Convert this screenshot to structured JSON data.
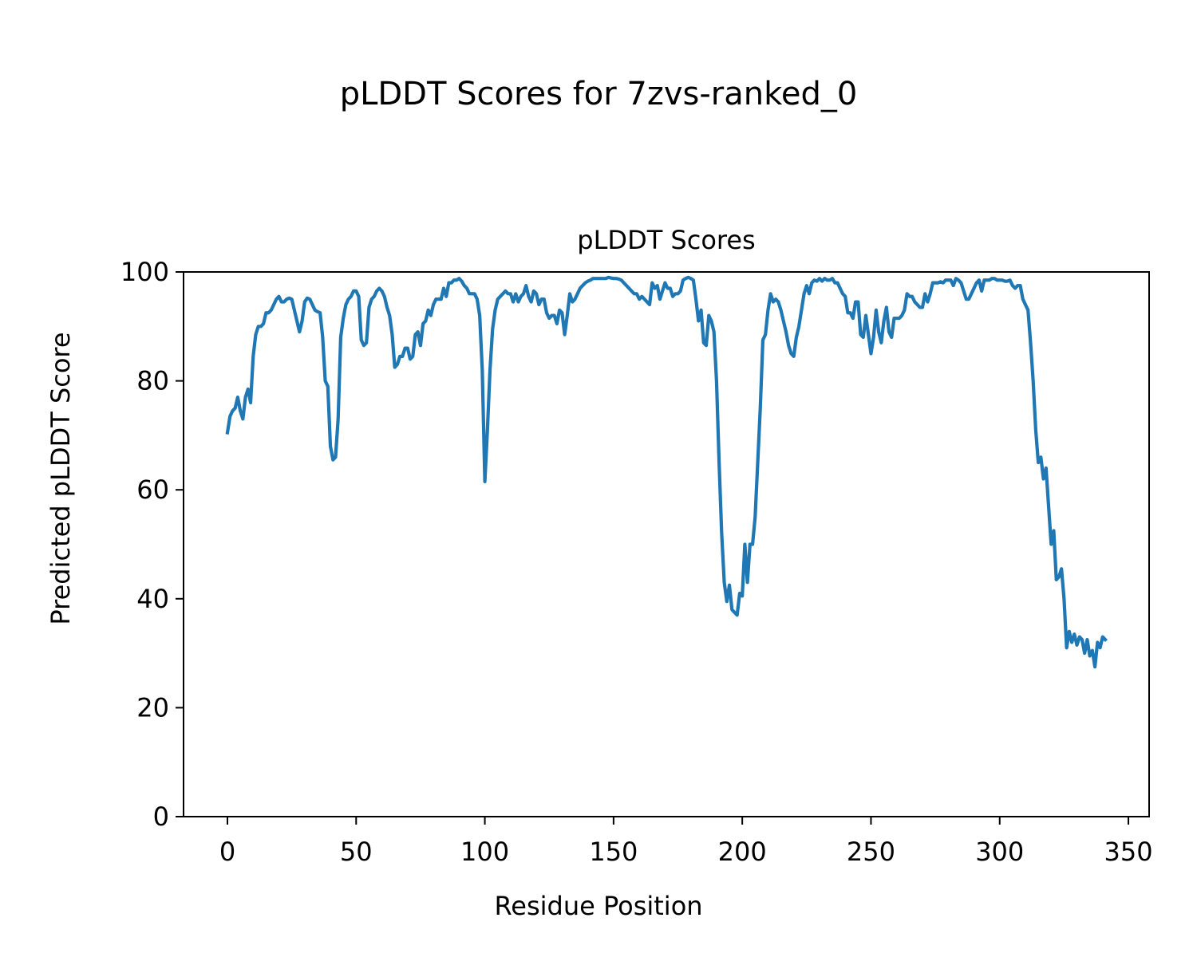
{
  "chart_data": {
    "type": "line",
    "suptitle": "pLDDT Scores for 7zvs-ranked_0",
    "title": "pLDDT Scores",
    "xlabel": "Residue Position",
    "ylabel": "Predicted pLDDT Score",
    "color": "#1f77b4",
    "xlim": [
      -17.05,
      358.05
    ],
    "ylim": [
      0,
      100
    ],
    "xticks": [
      0,
      50,
      100,
      150,
      200,
      250,
      300,
      350
    ],
    "yticks": [
      0,
      20,
      40,
      60,
      80,
      100
    ],
    "x": [
      0,
      1,
      2,
      3,
      4,
      5,
      6,
      7,
      8,
      9,
      10,
      11,
      12,
      13,
      14,
      15,
      16,
      17,
      18,
      19,
      20,
      21,
      22,
      23,
      24,
      25,
      26,
      27,
      28,
      29,
      30,
      31,
      32,
      33,
      34,
      35,
      36,
      37,
      38,
      39,
      40,
      41,
      42,
      43,
      44,
      45,
      46,
      47,
      48,
      49,
      50,
      51,
      52,
      53,
      54,
      55,
      56,
      57,
      58,
      59,
      60,
      61,
      62,
      63,
      64,
      65,
      66,
      67,
      68,
      69,
      70,
      71,
      72,
      73,
      74,
      75,
      76,
      77,
      78,
      79,
      80,
      81,
      82,
      83,
      84,
      85,
      86,
      87,
      88,
      89,
      90,
      91,
      92,
      93,
      94,
      95,
      96,
      97,
      98,
      99,
      100,
      101,
      102,
      103,
      104,
      105,
      106,
      107,
      108,
      109,
      110,
      111,
      112,
      113,
      114,
      115,
      116,
      117,
      118,
      119,
      120,
      121,
      122,
      123,
      124,
      125,
      126,
      127,
      128,
      129,
      130,
      131,
      132,
      133,
      134,
      135,
      136,
      137,
      138,
      139,
      140,
      141,
      142,
      143,
      144,
      145,
      146,
      147,
      148,
      149,
      150,
      151,
      152,
      153,
      154,
      155,
      156,
      157,
      158,
      159,
      160,
      161,
      162,
      163,
      164,
      165,
      166,
      167,
      168,
      169,
      170,
      171,
      172,
      173,
      174,
      175,
      176,
      177,
      178,
      179,
      180,
      181,
      182,
      183,
      184,
      185,
      186,
      187,
      188,
      189,
      190,
      191,
      192,
      193,
      194,
      195,
      196,
      197,
      198,
      199,
      200,
      201,
      202,
      203,
      204,
      205,
      206,
      207,
      208,
      209,
      210,
      211,
      212,
      213,
      214,
      215,
      216,
      217,
      218,
      219,
      220,
      221,
      222,
      223,
      224,
      225,
      226,
      227,
      228,
      229,
      230,
      231,
      232,
      233,
      234,
      235,
      236,
      237,
      238,
      239,
      240,
      241,
      242,
      243,
      244,
      245,
      246,
      247,
      248,
      249,
      250,
      251,
      252,
      253,
      254,
      255,
      256,
      257,
      258,
      259,
      260,
      261,
      262,
      263,
      264,
      265,
      266,
      267,
      268,
      269,
      270,
      271,
      272,
      273,
      274,
      275,
      276,
      277,
      278,
      279,
      280,
      281,
      282,
      283,
      284,
      285,
      286,
      287,
      288,
      289,
      290,
      291,
      292,
      293,
      294,
      295,
      296,
      297,
      298,
      299,
      300,
      301,
      302,
      303,
      304,
      305,
      306,
      307,
      308,
      309,
      310,
      311,
      312,
      313,
      314,
      315,
      316,
      317,
      318,
      319,
      320,
      321,
      322,
      323,
      324,
      325,
      326,
      327,
      328,
      329,
      330,
      331,
      332,
      333,
      334,
      335,
      336,
      337,
      338,
      339,
      340,
      341
    ],
    "values": [
      70.5,
      73.5,
      74.5,
      75,
      77,
      74.5,
      73,
      77,
      78.5,
      76,
      84.5,
      88.5,
      90,
      90,
      90.5,
      92.5,
      92.5,
      93,
      94,
      95,
      95.5,
      94.5,
      94.5,
      95,
      95.2,
      95,
      93,
      91,
      89,
      91,
      94.5,
      95.2,
      95,
      94,
      93,
      92.7,
      92.5,
      88,
      80,
      79,
      68,
      65.5,
      66,
      73,
      88,
      91.5,
      94,
      95,
      95.5,
      96.5,
      96.5,
      95.5,
      87.5,
      86.5,
      87,
      93.5,
      95,
      95.5,
      96.5,
      97,
      96.5,
      95.5,
      93.5,
      92,
      88.5,
      82.5,
      83,
      84.5,
      84.5,
      86,
      86,
      84,
      84.5,
      88.5,
      89,
      86.5,
      90.5,
      91,
      93,
      92,
      94,
      95,
      95,
      95,
      97,
      95.5,
      98,
      98,
      98.5,
      98.5,
      98.8,
      98.3,
      97.5,
      97,
      96,
      96,
      96,
      95,
      92,
      82,
      61.5,
      71,
      82,
      89.5,
      93,
      95,
      95.5,
      96,
      96.5,
      96,
      96,
      94.5,
      96,
      94.5,
      95.5,
      96,
      97.5,
      95.5,
      94.5,
      96.5,
      96,
      94,
      95,
      95,
      92.5,
      91.5,
      92,
      92,
      90.5,
      93,
      92.5,
      88.5,
      92,
      96,
      94.5,
      95,
      96,
      97,
      97.5,
      98,
      98.3,
      98.5,
      98.8,
      98.8,
      98.8,
      98.8,
      98.8,
      98.8,
      99,
      98.9,
      98.8,
      98.8,
      98.7,
      98.5,
      98,
      97.5,
      97,
      96.5,
      96,
      96,
      95,
      95.5,
      95,
      94.5,
      94,
      98,
      97,
      97.5,
      95,
      96.5,
      98,
      97,
      97,
      95.5,
      96,
      96,
      96.5,
      98.5,
      98.8,
      99,
      98.8,
      98.5,
      95,
      91,
      93,
      87,
      86.5,
      92,
      91,
      89,
      80,
      65,
      52,
      43,
      39.5,
      42.5,
      38,
      37.5,
      37,
      41,
      40.5,
      50,
      43,
      50,
      50,
      55,
      65,
      75,
      87.5,
      88.5,
      93,
      96,
      94.5,
      95,
      94.5,
      93,
      91,
      89,
      86.5,
      85,
      84.5,
      88,
      90,
      93,
      96,
      97.5,
      96,
      98,
      98.5,
      98.3,
      98.8,
      98.3,
      98.8,
      98.5,
      98.5,
      98.8,
      98,
      98,
      97,
      96,
      95.5,
      92.5,
      92.5,
      91.5,
      94.5,
      94.5,
      88.5,
      88,
      92,
      88.5,
      85,
      88,
      93,
      89,
      87,
      91,
      93.5,
      89,
      88,
      91.5,
      91.5,
      91.5,
      92,
      93,
      96,
      95.5,
      95.5,
      94.5,
      94,
      93.5,
      93.5,
      96,
      94.5,
      96,
      98,
      98,
      98,
      98.2,
      98,
      98.5,
      98.5,
      98.5,
      97.5,
      98.8,
      98.5,
      98,
      96.5,
      95,
      95,
      96,
      97,
      98,
      98.5,
      96.5,
      98.5,
      98.5,
      98.5,
      98.8,
      98.8,
      98.5,
      98.5,
      98.5,
      98.3,
      98.3,
      98.5,
      97.5,
      97,
      97.5,
      97.5,
      95,
      94,
      93,
      87,
      80,
      71,
      65,
      66,
      62,
      64,
      57,
      50,
      52.5,
      43.5,
      44,
      45.5,
      40,
      31,
      34,
      32,
      33.5,
      31.5,
      33,
      32.5,
      30,
      32.5,
      29.5,
      30.5,
      27.5,
      32,
      31,
      33,
      32.5
    ]
  }
}
